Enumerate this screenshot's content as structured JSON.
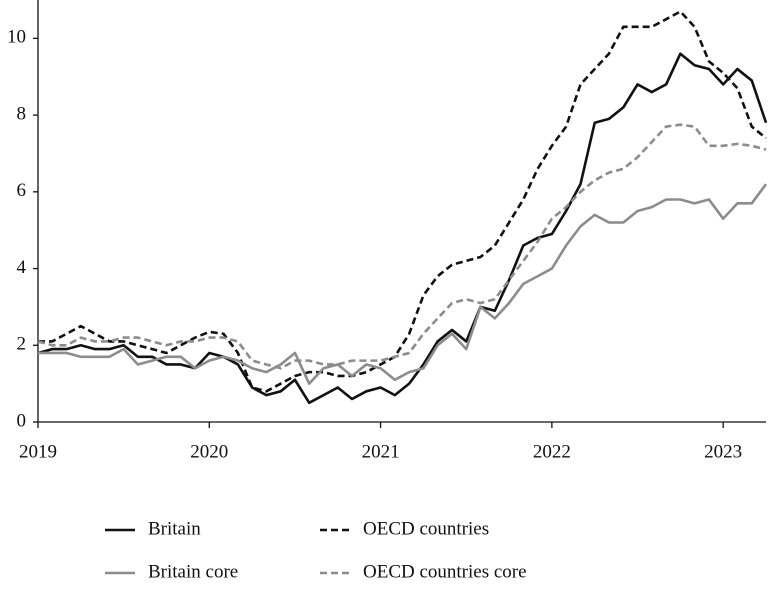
{
  "chart_data": {
    "type": "line",
    "x": [
      2019,
      2019.083,
      2019.167,
      2019.25,
      2019.333,
      2019.417,
      2019.5,
      2019.583,
      2019.667,
      2019.75,
      2019.833,
      2019.917,
      2020,
      2020.083,
      2020.167,
      2020.25,
      2020.333,
      2020.417,
      2020.5,
      2020.583,
      2020.667,
      2020.75,
      2020.833,
      2020.917,
      2021,
      2021.083,
      2021.167,
      2021.25,
      2021.333,
      2021.417,
      2021.5,
      2021.583,
      2021.667,
      2021.75,
      2021.833,
      2021.917,
      2022,
      2022.083,
      2022.167,
      2022.25,
      2022.333,
      2022.417,
      2022.5,
      2022.583,
      2022.667,
      2022.75,
      2022.833,
      2022.917,
      2023,
      2023.083,
      2023.167,
      2023.25
    ],
    "series": [
      {
        "name": "Britain",
        "color": "#111111",
        "style": "solid",
        "values": [
          1.8,
          1.9,
          1.9,
          2.0,
          1.9,
          1.9,
          2.0,
          1.7,
          1.7,
          1.5,
          1.5,
          1.4,
          1.8,
          1.7,
          1.5,
          0.9,
          0.7,
          0.8,
          1.1,
          0.5,
          0.7,
          0.9,
          0.6,
          0.8,
          0.9,
          0.7,
          1.0,
          1.5,
          2.1,
          2.4,
          2.1,
          3.0,
          2.9,
          3.7,
          4.6,
          4.8,
          4.9,
          5.5,
          6.2,
          7.8,
          7.9,
          8.2,
          8.8,
          8.6,
          8.8,
          9.6,
          9.3,
          9.2,
          8.8,
          9.2,
          8.9,
          7.8
        ]
      },
      {
        "name": "OECD countries",
        "color": "#111111",
        "style": "dashed",
        "values": [
          2.1,
          2.1,
          2.3,
          2.5,
          2.3,
          2.1,
          2.1,
          2.0,
          1.9,
          1.8,
          2.0,
          2.2,
          2.35,
          2.3,
          1.8,
          0.9,
          0.8,
          1.0,
          1.2,
          1.3,
          1.3,
          1.2,
          1.2,
          1.3,
          1.5,
          1.7,
          2.3,
          3.3,
          3.8,
          4.1,
          4.2,
          4.3,
          4.6,
          5.2,
          5.8,
          6.6,
          7.2,
          7.7,
          8.8,
          9.2,
          9.6,
          10.3,
          10.3,
          10.3,
          10.5,
          10.7,
          10.3,
          9.4,
          9.1,
          8.7,
          7.7,
          7.4
        ]
      },
      {
        "name": "Britain core",
        "color": "#8c8c8c",
        "style": "solid",
        "values": [
          1.8,
          1.8,
          1.8,
          1.7,
          1.7,
          1.7,
          1.9,
          1.5,
          1.6,
          1.7,
          1.7,
          1.4,
          1.6,
          1.7,
          1.6,
          1.4,
          1.3,
          1.5,
          1.8,
          1.0,
          1.4,
          1.5,
          1.2,
          1.5,
          1.4,
          1.1,
          1.3,
          1.4,
          2.0,
          2.3,
          1.9,
          3.0,
          2.7,
          3.1,
          3.6,
          3.8,
          4.0,
          4.6,
          5.1,
          5.4,
          5.2,
          5.2,
          5.5,
          5.6,
          5.8,
          5.8,
          5.7,
          5.8,
          5.3,
          5.7,
          5.7,
          6.2
        ]
      },
      {
        "name": "OECD countries core",
        "color": "#8c8c8c",
        "style": "dashed",
        "values": [
          2.1,
          2.0,
          2.0,
          2.2,
          2.1,
          2.1,
          2.2,
          2.2,
          2.1,
          2.0,
          2.1,
          2.1,
          2.2,
          2.2,
          2.1,
          1.6,
          1.5,
          1.4,
          1.6,
          1.6,
          1.5,
          1.5,
          1.6,
          1.6,
          1.6,
          1.7,
          1.8,
          2.3,
          2.7,
          3.1,
          3.2,
          3.1,
          3.2,
          3.7,
          4.2,
          4.7,
          5.3,
          5.6,
          6.0,
          6.3,
          6.5,
          6.6,
          6.9,
          7.3,
          7.7,
          7.75,
          7.7,
          7.2,
          7.2,
          7.25,
          7.2,
          7.1
        ]
      }
    ],
    "xlim": [
      2019,
      2023.25
    ],
    "xticks": [
      2019,
      2020,
      2021,
      2022,
      2023
    ],
    "ylim": [
      0,
      11
    ],
    "yticks": [
      0,
      2,
      4,
      6,
      8,
      10
    ],
    "grid": false
  }
}
